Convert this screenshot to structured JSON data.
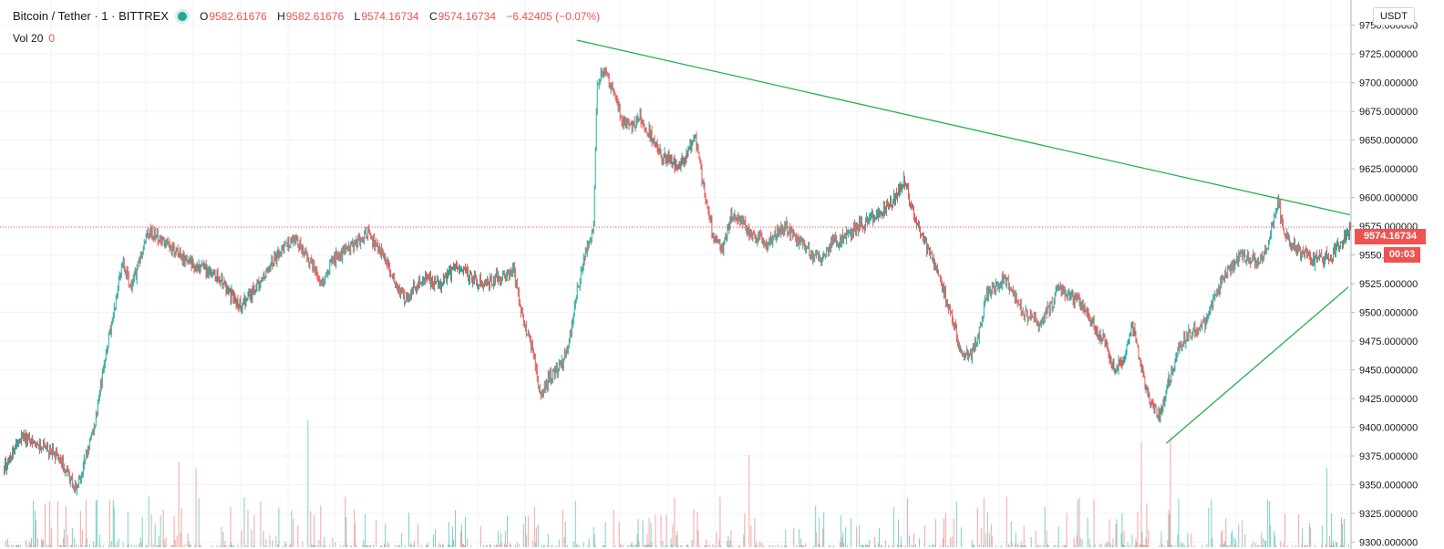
{
  "header": {
    "symbol": "Bitcoin / Tether · 1 · BITTREX",
    "ohlc": {
      "o_label": "O",
      "o_value": "9582.61676",
      "h_label": "H",
      "h_value": "9582.61676",
      "l_label": "L",
      "l_value": "9574.16734",
      "c_label": "C",
      "c_value": "9574.16734",
      "change": "−6.42405 (−0.07%)"
    },
    "volume": {
      "label": "Vol 20",
      "value": "0"
    }
  },
  "axis": {
    "unit_badge": "USDT",
    "price_badge": "9574.16734",
    "timer_badge": "00:03",
    "tick_labels": [
      "9300.000000",
      "9325.000000",
      "9350.000000",
      "9375.000000",
      "9400.000000",
      "9425.000000",
      "9450.000000",
      "9475.000000",
      "9500.000000",
      "9525.000000",
      "9550.000000",
      "9575.000000",
      "9600.000000",
      "9625.000000",
      "9650.000000",
      "9675.000000",
      "9700.000000",
      "9725.000000",
      "9750.000000"
    ]
  },
  "colors": {
    "up": "#26a69a",
    "down": "#ef5350",
    "trendline": "#22b14c",
    "grid": "#f0f3fa",
    "axis_text": "#131722",
    "last_price": "#ef5350"
  },
  "chart_data": {
    "type": "candlestick",
    "symbol": "Bitcoin / Tether",
    "interval": "1",
    "exchange": "BITTREX",
    "ylim": [
      9294,
      9772
    ],
    "yticks": [
      9300,
      9325,
      9350,
      9375,
      9400,
      9425,
      9450,
      9475,
      9500,
      9525,
      9550,
      9575,
      9600,
      9625,
      9650,
      9675,
      9700,
      9725,
      9750
    ],
    "last_price": 9574.16734,
    "grid": true,
    "price_path": {
      "bar_index": [
        0,
        20,
        40,
        60,
        80,
        90,
        100,
        110,
        120,
        130,
        140,
        150,
        160,
        180,
        200,
        230,
        260,
        280,
        300,
        320,
        340,
        350,
        360,
        380,
        400,
        420,
        440,
        460,
        480,
        500,
        520,
        540,
        560,
        570,
        580,
        590,
        600,
        610,
        620,
        630,
        640,
        648,
        652,
        660,
        670,
        680,
        690,
        700,
        720,
        740,
        760,
        770,
        780,
        790,
        800,
        810,
        820,
        840,
        860,
        880,
        900,
        910,
        920,
        940,
        960,
        980,
        990,
        1000,
        1010,
        1020,
        1030,
        1040,
        1050,
        1060,
        1070,
        1080,
        1090,
        1100,
        1120,
        1140,
        1160,
        1180,
        1200,
        1210,
        1220,
        1230,
        1240,
        1250,
        1260,
        1270,
        1280,
        1290,
        1300,
        1320,
        1340,
        1360,
        1380,
        1390,
        1400,
        1410,
        1420,
        1440,
        1460,
        1480
      ],
      "close": [
        9365,
        9392,
        9385,
        9373,
        9345,
        9375,
        9405,
        9455,
        9500,
        9545,
        9520,
        9548,
        9572,
        9558,
        9545,
        9535,
        9505,
        9525,
        9550,
        9565,
        9540,
        9525,
        9545,
        9555,
        9570,
        9545,
        9510,
        9530,
        9525,
        9540,
        9525,
        9530,
        9535,
        9495,
        9470,
        9425,
        9445,
        9450,
        9470,
        9520,
        9555,
        9575,
        9700,
        9710,
        9690,
        9665,
        9660,
        9670,
        9640,
        9625,
        9650,
        9605,
        9565,
        9555,
        9585,
        9580,
        9568,
        9560,
        9575,
        9555,
        9545,
        9560,
        9565,
        9575,
        9585,
        9600,
        9615,
        9585,
        9565,
        9545,
        9525,
        9500,
        9470,
        9460,
        9475,
        9515,
        9525,
        9530,
        9500,
        9490,
        9520,
        9510,
        9485,
        9475,
        9450,
        9460,
        9490,
        9450,
        9420,
        9410,
        9440,
        9465,
        9480,
        9490,
        9530,
        9550,
        9545,
        9560,
        9595,
        9565,
        9555,
        9545,
        9550,
        9574.16734
      ]
    },
    "drawings": [
      {
        "type": "trendline",
        "from": {
          "bar_index": 630,
          "price": 9737
        },
        "to": {
          "bar_index": 1480,
          "price": 9585
        }
      },
      {
        "type": "trendline",
        "from": {
          "bar_index": 1278,
          "price": 9386
        },
        "to": {
          "bar_index": 1478,
          "price": 9522
        }
      }
    ]
  }
}
